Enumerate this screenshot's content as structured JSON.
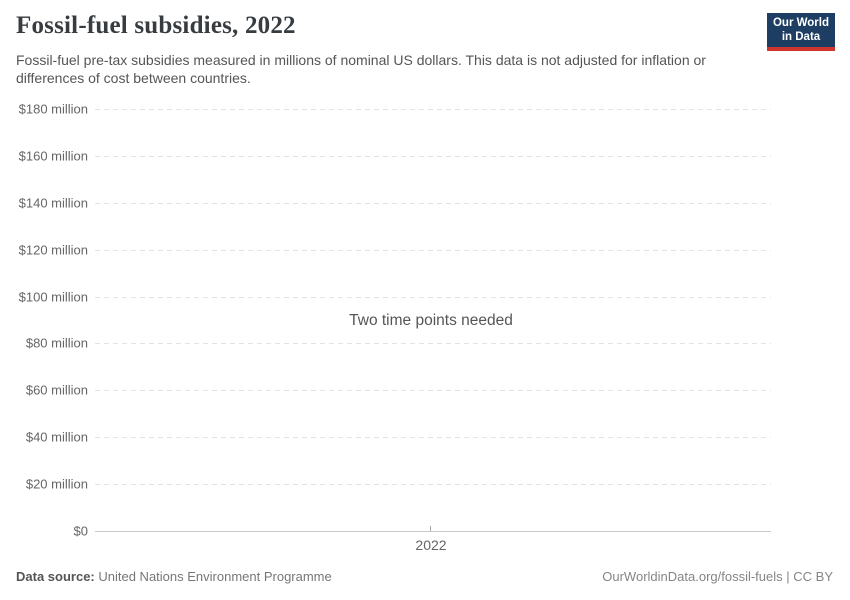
{
  "header": {
    "title": "Fossil-fuel subsidies, 2022",
    "subtitle": "Fossil-fuel pre-tax subsidies measured in millions of nominal US dollars. This data is not adjusted for inflation or differences of cost between countries.",
    "logo": {
      "line1": "Our World",
      "line2": "in Data"
    }
  },
  "chart_data": {
    "type": "line",
    "title": "Fossil-fuel subsidies, 2022",
    "unit": "millions of nominal US dollars",
    "series": [],
    "empty_state_message": "Two time points needed",
    "x": [
      2022
    ],
    "x_tick_labels": [
      "2022"
    ],
    "yticks": [
      180,
      160,
      140,
      120,
      100,
      80,
      60,
      40,
      20,
      0
    ],
    "ytick_labels": [
      "$180 million",
      "$160 million",
      "$140 million",
      "$120 million",
      "$100 million",
      "$80 million",
      "$60 million",
      "$40 million",
      "$20 million",
      "$0"
    ],
    "ylim": [
      0,
      180
    ],
    "xlabel": "",
    "ylabel": "",
    "gridlines": true,
    "legend_position": "none"
  },
  "footer": {
    "source_label": "Data source:",
    "source_value": " United Nations Environment Programme",
    "link": "OurWorldinData.org/fossil-fuels",
    "license_suffix": " | CC BY"
  },
  "colors": {
    "logo_navy": "#1d3d63",
    "logo_red": "#cf352e",
    "title_text": "#373c40",
    "subtitle_text": "#555555",
    "tick_text": "#666666",
    "gridline": "#e3e3e3",
    "axis_line": "#c8c8c8",
    "footer_text": "#777777"
  }
}
